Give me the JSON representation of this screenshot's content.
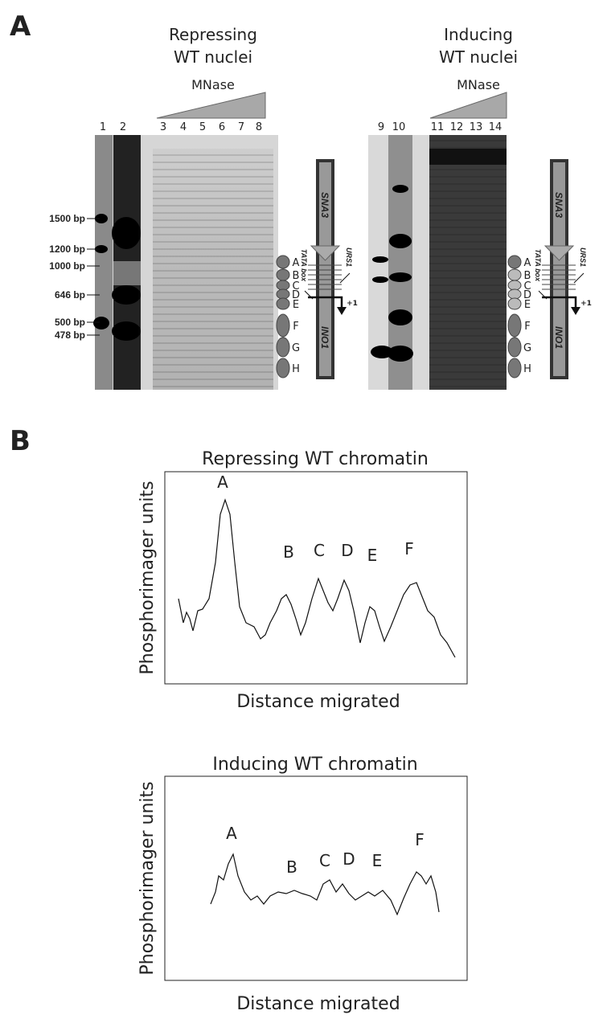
{
  "panel_a": {
    "label": "A",
    "left": {
      "title_lines": [
        "Repressing",
        "WT nuclei"
      ],
      "mnase": "MNase",
      "lanes": [
        "1",
        "2",
        "3",
        "4",
        "5",
        "6",
        "7",
        "8"
      ],
      "markers": [
        "1500 bp",
        "1200 bp",
        "1000 bp",
        "646 bp",
        "500 bp",
        "478 bp"
      ],
      "nucleosomes": [
        "A",
        "B",
        "C",
        "D",
        "E",
        "F",
        "G",
        "H"
      ],
      "diagram": {
        "top": "SNA3",
        "bottom": "INO1",
        "tata": "TATA box",
        "urs": "URS1",
        "tss": "+1"
      }
    },
    "right": {
      "title_lines": [
        "Inducing",
        "WT nuclei"
      ],
      "mnase": "MNase",
      "lanes": [
        "9",
        "10",
        "11",
        "12",
        "13",
        "14"
      ],
      "nucleosomes": [
        "A",
        "B",
        "C",
        "D",
        "E",
        "F",
        "G",
        "H"
      ],
      "diagram": {
        "top": "SNA3",
        "bottom": "INO1",
        "tata": "TATA box",
        "urs": "URS1",
        "tss": "+1"
      }
    }
  },
  "panel_b": {
    "label": "B",
    "plots": [
      {
        "title": "Repressing WT chromatin",
        "ylabel": "Phosphorimager units",
        "xlabel": "Distance migrated",
        "peaks": [
          "A",
          "B",
          "C",
          "D",
          "E",
          "F"
        ]
      },
      {
        "title": "Inducing WT chromatin",
        "ylabel": "Phosphorimager units",
        "xlabel": "Distance migrated",
        "peaks": [
          "A",
          "B",
          "C",
          "D",
          "E",
          "F"
        ]
      }
    ]
  }
}
